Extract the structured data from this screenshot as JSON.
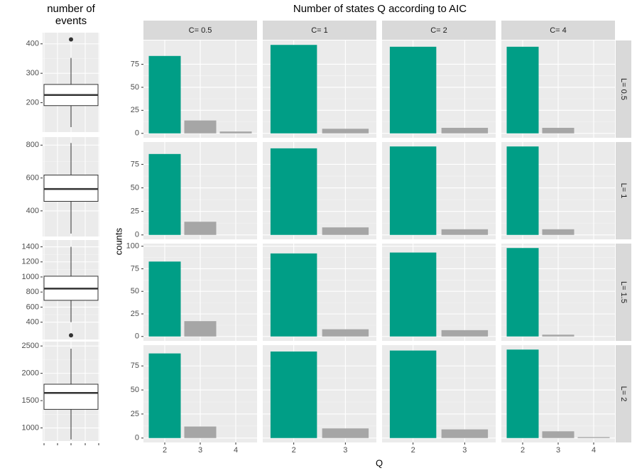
{
  "chart_data": [
    {
      "type": "boxplot",
      "title": "number of events",
      "panels": [
        {
          "ylim": [
            100,
            438
          ],
          "yticks": [
            200,
            300,
            400
          ],
          "min": 117,
          "q1": 190,
          "median": 226,
          "q3": 262,
          "max": 352,
          "outliers": [
            415
          ]
        },
        {
          "ylim": [
            244,
            849
          ],
          "yticks": [
            400,
            600,
            800
          ],
          "min": 262,
          "q1": 458,
          "median": 533,
          "q3": 618,
          "max": 813,
          "outliers": []
        },
        {
          "ylim": [
            170,
            1490
          ],
          "yticks": [
            400,
            600,
            800,
            1000,
            1200,
            1400
          ],
          "min": 400,
          "q1": 690,
          "median": 845,
          "q3": 1010,
          "max": 1400,
          "outliers": [
            225
          ]
        },
        {
          "ylim": [
            760,
            2580
          ],
          "yticks": [
            1000,
            1500,
            2000,
            2500
          ],
          "min": 790,
          "q1": 1340,
          "median": 1640,
          "q3": 1800,
          "max": 2450,
          "outliers": []
        }
      ]
    },
    {
      "type": "bar",
      "title": "Number of states Q according to AIC",
      "xlabel": "Q",
      "ylabel": "counts",
      "columns": [
        "C= 0.5",
        "C= 1",
        "C= 2",
        "C= 4"
      ],
      "rows": [
        "L= 0.5",
        "L= 1",
        "L= 1.5",
        "L= 2"
      ],
      "x": [
        [
          "2",
          "3",
          "4"
        ],
        [
          "2",
          "3"
        ],
        [
          "2",
          "3"
        ],
        [
          "2",
          "3",
          "4"
        ]
      ],
      "colors": [
        "#009e86",
        "#a6a6a6",
        "#a6a6a6"
      ],
      "grid": true,
      "row_scales": [
        {
          "ylim": [
            -4.8,
            100.8
          ],
          "yticks": [
            0,
            25,
            50,
            75
          ]
        },
        {
          "ylim": [
            -4.7,
            98.7
          ],
          "yticks": [
            0,
            25,
            50,
            75
          ]
        },
        {
          "ylim": [
            -4.9,
            102.9
          ],
          "yticks": [
            0,
            25,
            50,
            75,
            100
          ]
        },
        {
          "ylim": [
            -4.6,
            96.6
          ],
          "yticks": [
            0,
            25,
            50,
            75
          ]
        }
      ],
      "panels": [
        [
          [
            84,
            14,
            2
          ],
          [
            96,
            5
          ],
          [
            94,
            6
          ],
          [
            94,
            6,
            null
          ]
        ],
        [
          [
            86,
            14,
            null
          ],
          [
            92,
            8
          ],
          [
            94,
            6
          ],
          [
            94,
            6,
            null
          ]
        ],
        [
          [
            83,
            17,
            null
          ],
          [
            92,
            8
          ],
          [
            93,
            7
          ],
          [
            98,
            2,
            null
          ]
        ],
        [
          [
            88,
            12,
            null
          ],
          [
            90,
            10
          ],
          [
            91,
            9
          ],
          [
            92,
            7,
            1
          ]
        ]
      ]
    }
  ]
}
